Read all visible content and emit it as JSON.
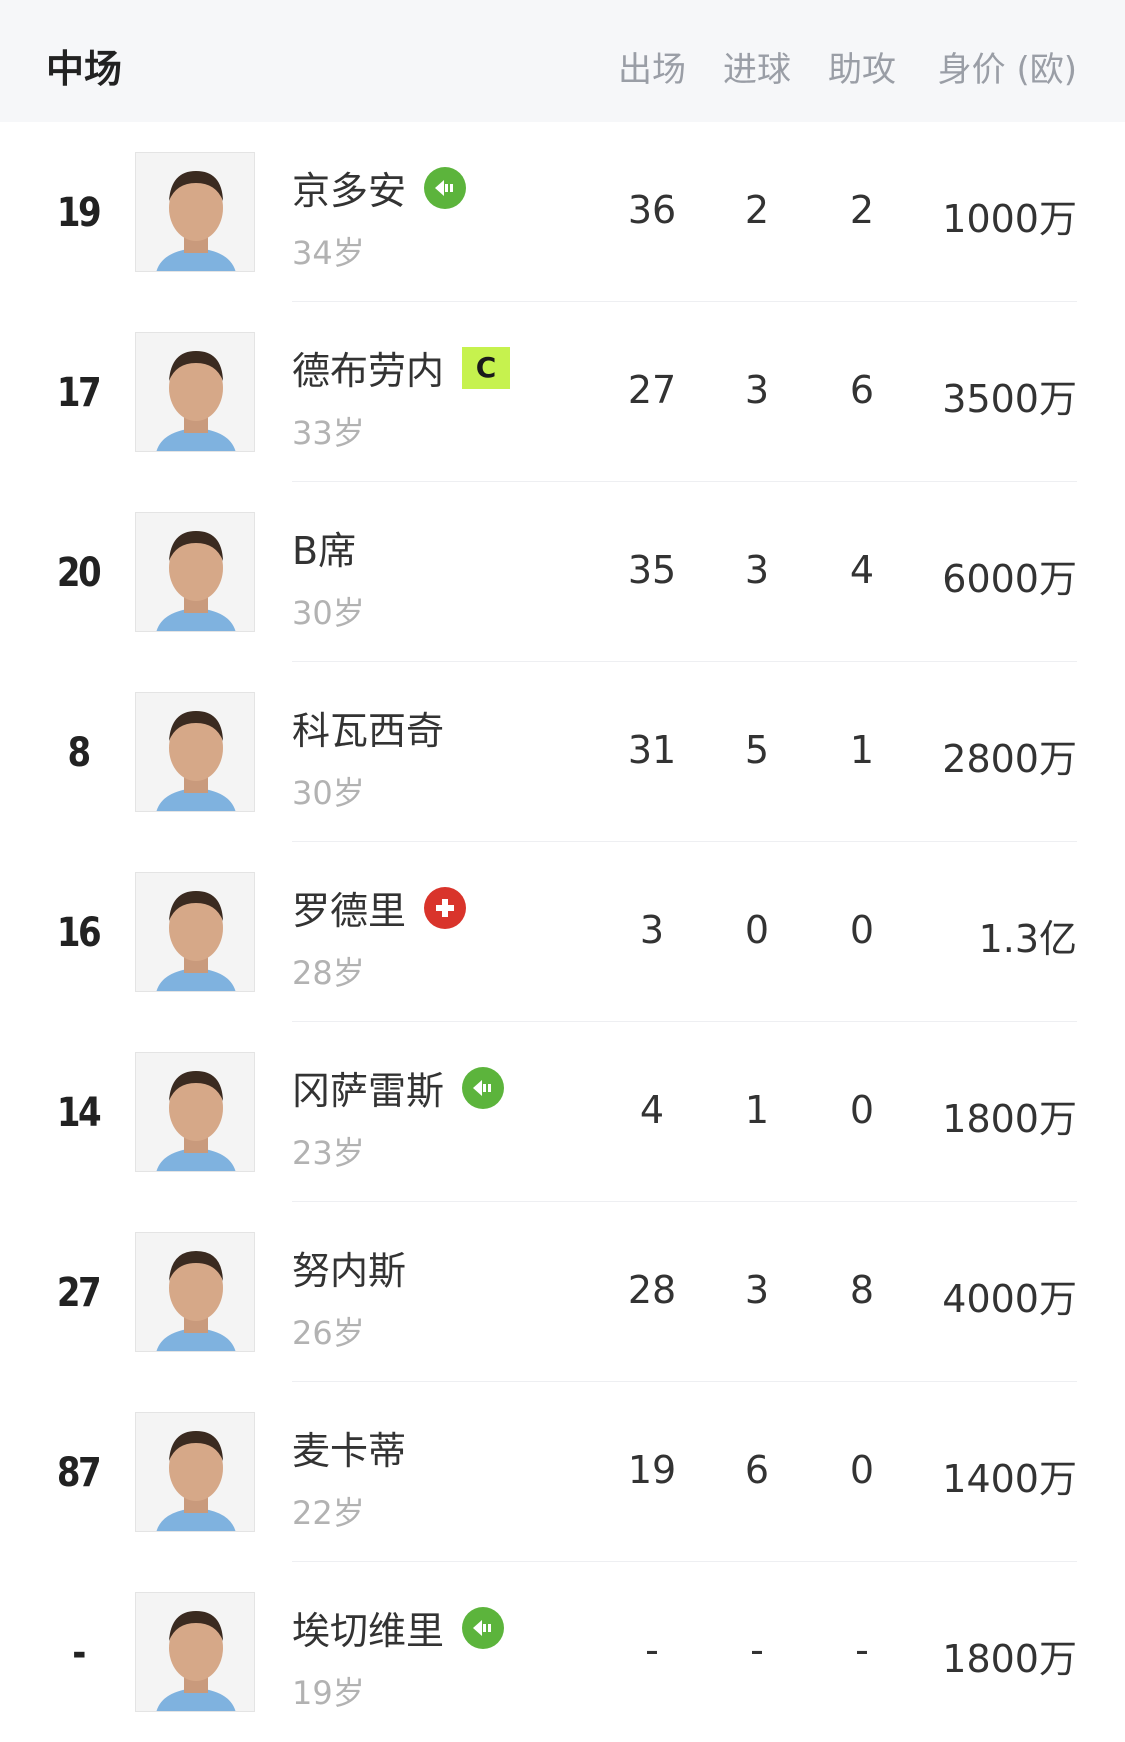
{
  "header": {
    "title": "中场",
    "cols": [
      "出场",
      "进球",
      "助攻"
    ],
    "value_col": "身价 (欧)"
  },
  "colors": {
    "sub": "#5cb43c",
    "injury": "#d9342b",
    "captain": "#c6f24e"
  },
  "players": [
    {
      "number": "19",
      "name": "京多安",
      "age": "34岁",
      "apps": "36",
      "goals": "2",
      "assists": "2",
      "value": "1000万",
      "badge": "substitution-icon"
    },
    {
      "number": "17",
      "name": "德布劳内",
      "age": "33岁",
      "apps": "27",
      "goals": "3",
      "assists": "6",
      "value": "3500万",
      "badge": "captain",
      "badge_text": "C"
    },
    {
      "number": "20",
      "name": "B席",
      "age": "30岁",
      "apps": "35",
      "goals": "3",
      "assists": "4",
      "value": "6000万",
      "badge": ""
    },
    {
      "number": "8",
      "name": "科瓦西奇",
      "age": "30岁",
      "apps": "31",
      "goals": "5",
      "assists": "1",
      "value": "2800万",
      "badge": ""
    },
    {
      "number": "16",
      "name": "罗德里",
      "age": "28岁",
      "apps": "3",
      "goals": "0",
      "assists": "0",
      "value": "1.3亿",
      "badge": "injury-icon"
    },
    {
      "number": "14",
      "name": "冈萨雷斯",
      "age": "23岁",
      "apps": "4",
      "goals": "1",
      "assists": "0",
      "value": "1800万",
      "badge": "substitution-icon"
    },
    {
      "number": "27",
      "name": "努内斯",
      "age": "26岁",
      "apps": "28",
      "goals": "3",
      "assists": "8",
      "value": "4000万",
      "badge": ""
    },
    {
      "number": "87",
      "name": "麦卡蒂",
      "age": "22岁",
      "apps": "19",
      "goals": "6",
      "assists": "0",
      "value": "1400万",
      "badge": ""
    },
    {
      "number": "-",
      "name": "埃切维里",
      "age": "19岁",
      "apps": "-",
      "goals": "-",
      "assists": "-",
      "value": "1800万",
      "badge": "substitution-icon"
    }
  ]
}
